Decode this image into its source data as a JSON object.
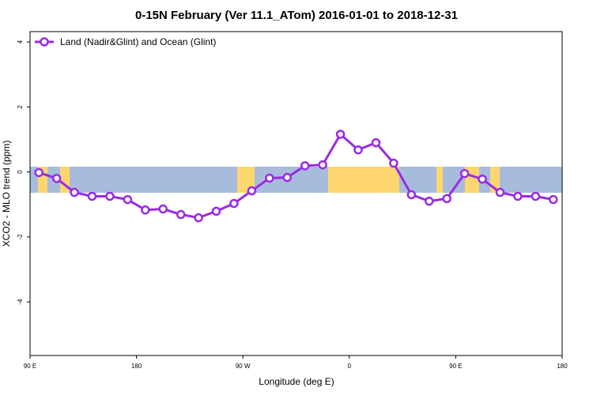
{
  "chart_data": {
    "type": "line",
    "title": "0-15N February (Ver 11.1_ATom)   2016-01-01 to 2018-12-31",
    "x_label": "Longitude (deg E)",
    "y_label": "XCO2 - MLO trend (ppm)",
    "x": [
      97.5,
      112.5,
      127.5,
      142.5,
      157.5,
      172.5,
      187.5,
      202.5,
      217.5,
      232.5,
      247.5,
      262.5,
      277.5,
      292.5,
      307.5,
      322.5,
      337.5,
      352.5,
      367.5,
      382.5,
      397.5,
      412.5,
      427.5,
      442.5,
      457.5,
      472.5,
      487.5,
      502.5,
      517.5,
      532.5
    ],
    "series": [
      {
        "name": "Land (Nadir&Glint) and Ocean (Glint)",
        "color": "#9a2be2",
        "values": [
          -0.02,
          -0.2,
          -0.63,
          -0.75,
          -0.75,
          -0.85,
          -1.17,
          -1.14,
          -1.31,
          -1.41,
          -1.21,
          -0.97,
          -0.58,
          -0.19,
          -0.17,
          0.19,
          0.22,
          1.16,
          0.68,
          0.9,
          0.27,
          -0.7,
          -0.9,
          -0.82,
          -0.05,
          -0.22,
          -0.63,
          -0.75,
          -0.75,
          -0.85
        ]
      }
    ],
    "xlim": [
      90,
      540
    ],
    "xticks": [
      {
        "value": 90,
        "label": "90 E"
      },
      180,
      {
        "value": 270,
        "label": "90 W"
      },
      {
        "value": 360,
        "label": "0"
      },
      {
        "value": 450,
        "label": "90 E"
      },
      {
        "value": 540,
        "label": "180"
      }
    ],
    "ylim": [
      -5.65,
      4.32
    ],
    "yticks": [
      -4,
      -2,
      0,
      2,
      4
    ],
    "legend": "top-left"
  }
}
